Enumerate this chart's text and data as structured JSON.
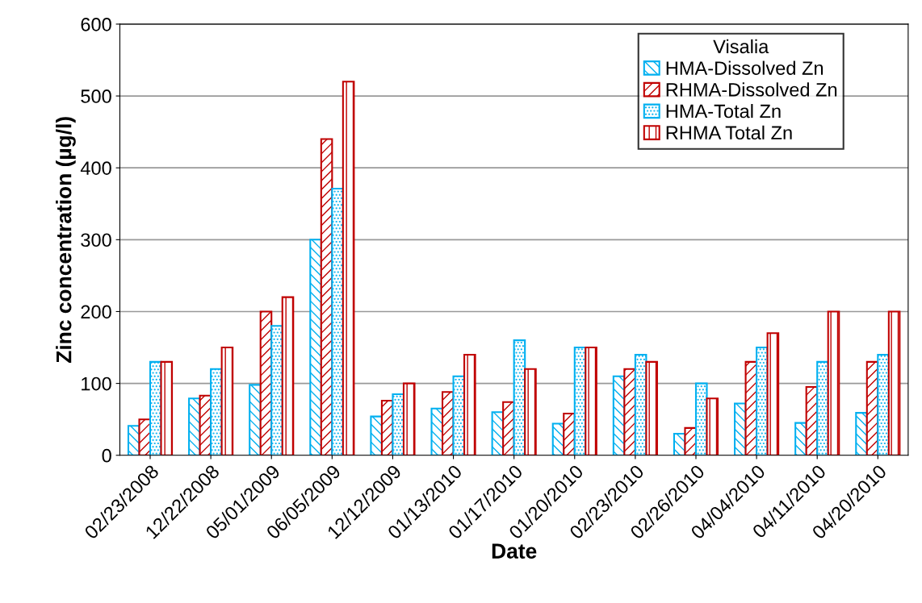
{
  "chart_data": {
    "type": "bar",
    "xlabel": "Date",
    "ylabel": "Zinc concentration (µg/l)",
    "legend_title": "Visalia",
    "legend": "top right",
    "grid": "y",
    "categories": [
      "02/23/2008",
      "12/22/2008",
      "05/01/2009",
      "06/05/2009",
      "12/12/2009",
      "01/13/2010",
      "01/17/2010",
      "01/20/2010",
      "02/23/2010",
      "02/26/2010",
      "04/04/2010",
      "04/11/2010",
      "04/20/2010"
    ],
    "ylim": [
      0,
      600
    ],
    "yticks": [
      0,
      100,
      200,
      300,
      400,
      500,
      600
    ],
    "series": [
      {
        "name": "HMA-Dissolved Zn",
        "color": "#00b0f0",
        "values": [
          41,
          79,
          98,
          300,
          54,
          65,
          60,
          44,
          110,
          30,
          72,
          45,
          59
        ]
      },
      {
        "name": "RHMA-Dissolved Zn",
        "color": "#c00000",
        "values": [
          50,
          83,
          200,
          440,
          76,
          88,
          74,
          58,
          120,
          38,
          130,
          95,
          130
        ]
      },
      {
        "name": "HMA-Total Zn",
        "color": "#00b0f0",
        "values": [
          130,
          120,
          180,
          371,
          85,
          110,
          160,
          150,
          140,
          100,
          150,
          130,
          140
        ]
      },
      {
        "name": "RHMA Total Zn",
        "color": "#c00000",
        "values": [
          130,
          150,
          220,
          520,
          100,
          140,
          120,
          150,
          130,
          79,
          170,
          200,
          200
        ]
      }
    ]
  }
}
